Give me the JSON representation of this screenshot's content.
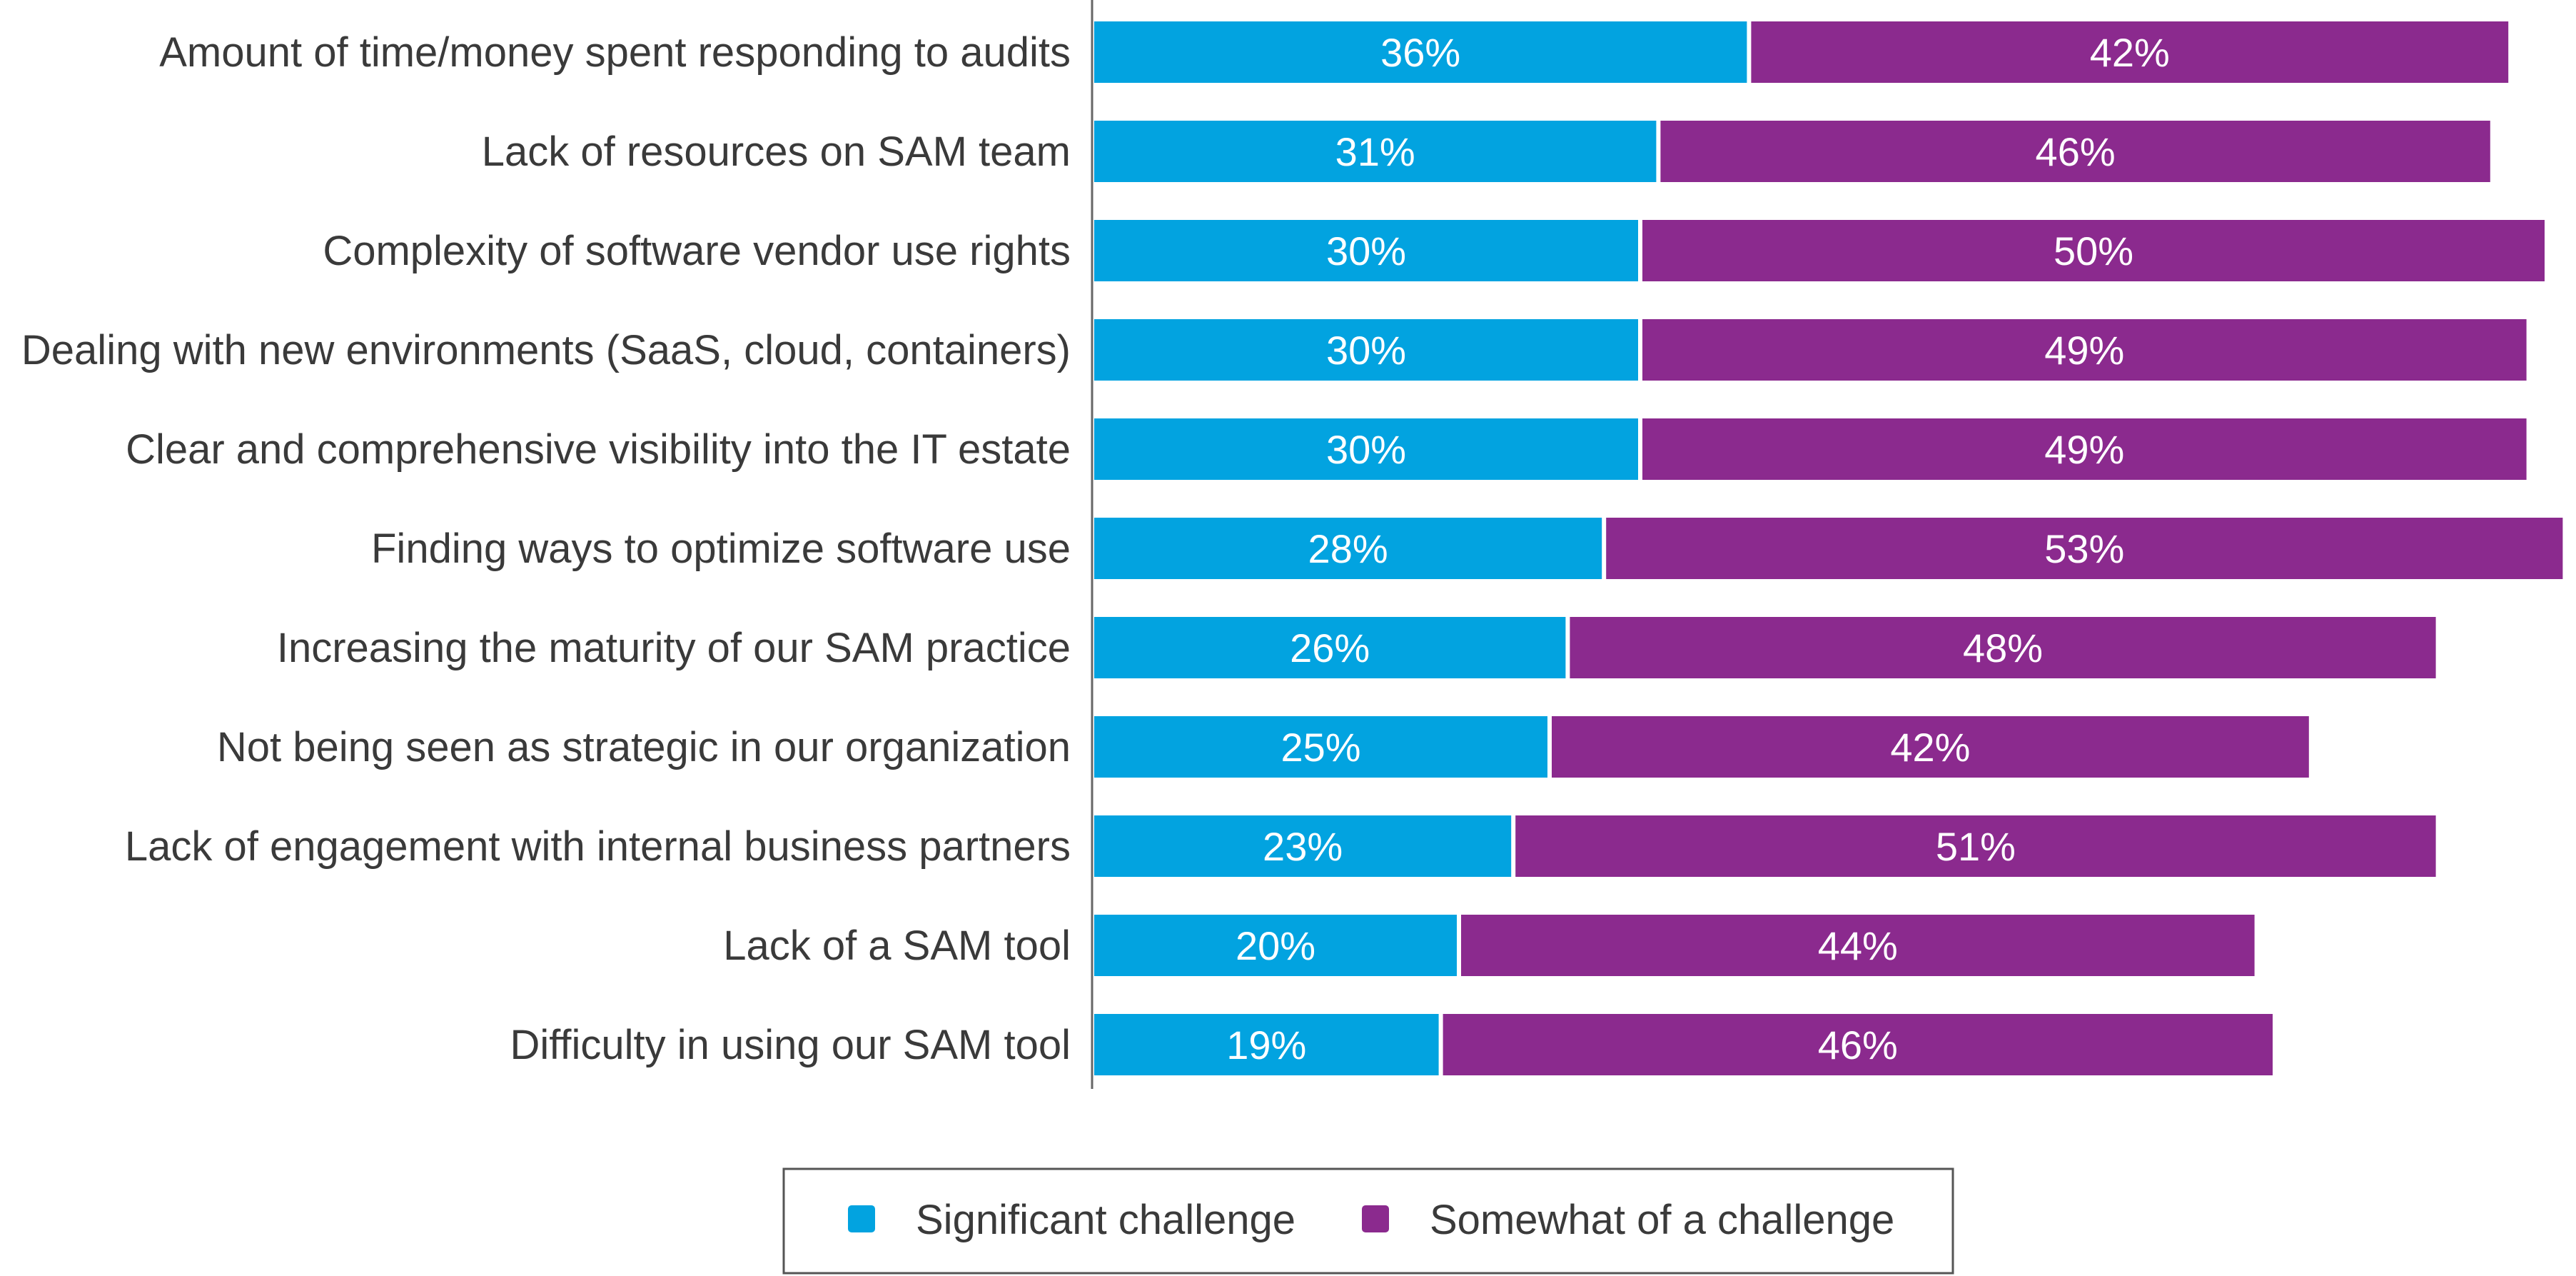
{
  "chart_data": {
    "type": "bar",
    "orientation": "horizontal",
    "stacked": true,
    "categories": [
      "Amount of time/money spent responding to audits",
      "Lack of resources on SAM team",
      "Complexity of software vendor use rights",
      "Dealing with new environments (SaaS, cloud, containers)",
      "Clear and comprehensive visibility into the IT estate",
      "Finding ways to optimize software use",
      "Increasing the maturity of our SAM practice",
      "Not being seen as strategic in our organization",
      "Lack of engagement with internal business partners",
      "Lack of a SAM tool",
      "Difficulty in using our SAM tool"
    ],
    "series": [
      {
        "name": "Significant challenge",
        "color": "#02a3e0",
        "values": [
          36,
          31,
          30,
          30,
          30,
          28,
          26,
          25,
          23,
          20,
          19
        ],
        "labels": [
          "36%",
          "31%",
          "30%",
          "30%",
          "30%",
          "28%",
          "26%",
          "25%",
          "23%",
          "20%",
          "19%"
        ]
      },
      {
        "name": "Somewhat of a challenge",
        "color": "#8b2a8e",
        "values": [
          42,
          46,
          50,
          49,
          49,
          53,
          48,
          42,
          51,
          44,
          46
        ],
        "labels": [
          "42%",
          "46%",
          "50%",
          "49%",
          "49%",
          "53%",
          "48%",
          "42%",
          "51%",
          "44%",
          "46%"
        ]
      }
    ],
    "xlim": [
      0,
      82
    ],
    "title": "",
    "xlabel": "",
    "ylabel": "",
    "grid": false,
    "legend": {
      "position": "bottom-center",
      "entries": [
        "Significant challenge",
        "Somewhat of a challenge"
      ]
    }
  }
}
